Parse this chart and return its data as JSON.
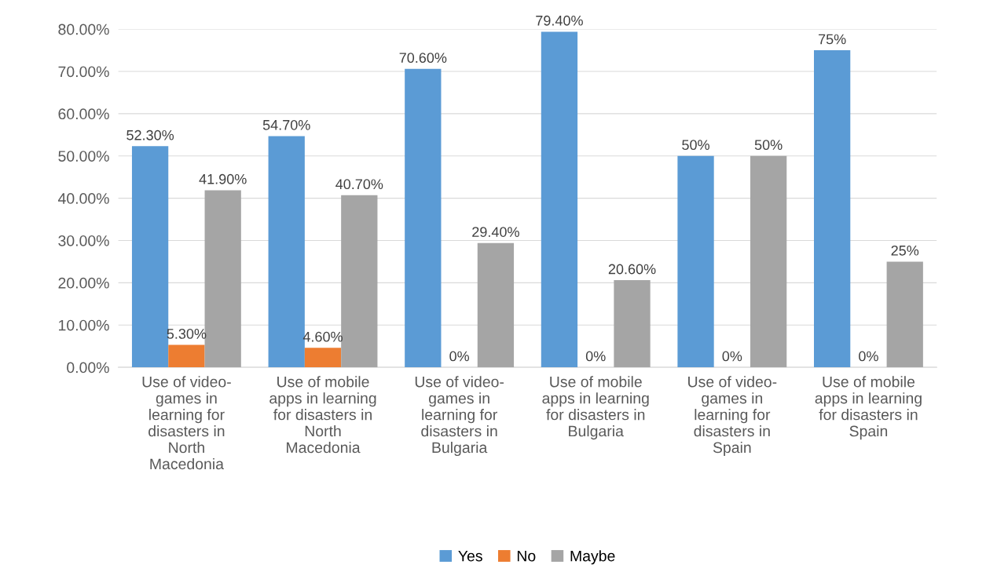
{
  "chart_data": {
    "type": "bar",
    "categories": [
      "Use of video-\ngames in\nlearning for\ndisasters in\nNorth\nMacedonia",
      "Use of mobile\napps in learning\nfor disasters in\nNorth\nMacedonia",
      "Use of video-\ngames in\nlearning for\ndisasters in\nBulgaria",
      "Use of mobile\napps in learning\nfor disasters in\nBulgaria",
      "Use of video-\ngames in\nlearning for\ndisasters in\nSpain",
      "Use of mobile\napps in learning\nfor disasters in\nSpain"
    ],
    "series": [
      {
        "name": "Yes",
        "color": "#5b9bd5",
        "values": [
          52.3,
          54.7,
          70.6,
          79.4,
          50,
          75
        ],
        "value_labels": [
          "52.30%",
          "54.70%",
          "70.60%",
          "79.40%",
          "50%",
          "75%"
        ]
      },
      {
        "name": "No",
        "color": "#ed7d31",
        "values": [
          5.3,
          4.6,
          0,
          0,
          0,
          0
        ],
        "value_labels": [
          "5.30%",
          "4.60%",
          "0%",
          "0%",
          "0%",
          "0%"
        ]
      },
      {
        "name": "Maybe",
        "color": "#a5a5a5",
        "values": [
          41.9,
          40.7,
          29.4,
          20.6,
          50,
          25
        ],
        "value_labels": [
          "41.90%",
          "40.70%",
          "29.40%",
          "20.60%",
          "50%",
          "25%"
        ]
      }
    ],
    "ylim": [
      0,
      80
    ],
    "yticks": [
      {
        "value": 0,
        "label": "0.00%"
      },
      {
        "value": 10,
        "label": "10.00%"
      },
      {
        "value": 20,
        "label": "20.00%"
      },
      {
        "value": 30,
        "label": "30.00%"
      },
      {
        "value": 40,
        "label": "40.00%"
      },
      {
        "value": 50,
        "label": "50.00%"
      },
      {
        "value": 60,
        "label": "60.00%"
      },
      {
        "value": 70,
        "label": "70.00%"
      },
      {
        "value": 80,
        "label": "80.00%"
      }
    ],
    "grid": "y",
    "legend": "bottom"
  }
}
